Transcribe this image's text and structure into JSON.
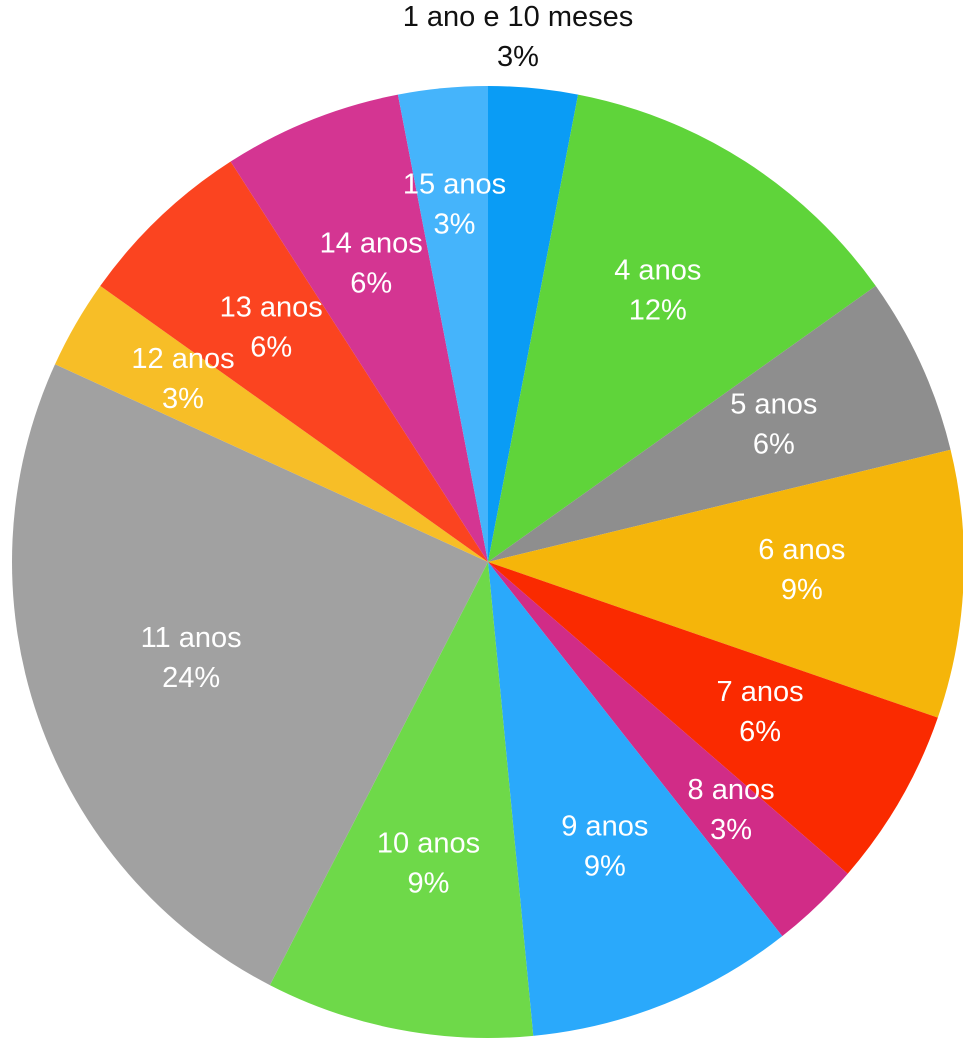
{
  "chart_data": {
    "type": "pie",
    "title": "",
    "start_angle_deg": 0,
    "direction": "clockwise",
    "slices": [
      {
        "label": "1 ano e 10 meses",
        "value": 3,
        "display": "3%",
        "color": "#0a9cf5",
        "label_outside": true
      },
      {
        "label": "4 anos",
        "value": 12,
        "display": "12%",
        "color": "#5fd43a",
        "label_outside": false
      },
      {
        "label": "5 anos",
        "value": 6,
        "display": "6%",
        "color": "#8e8e8e",
        "label_outside": false
      },
      {
        "label": "6 anos",
        "value": 9,
        "display": "9%",
        "color": "#f5b50a",
        "label_outside": false
      },
      {
        "label": "7 anos",
        "value": 6,
        "display": "6%",
        "color": "#fa2a00",
        "label_outside": false
      },
      {
        "label": "8 anos",
        "value": 3,
        "display": "3%",
        "color": "#d12c87",
        "label_outside": false
      },
      {
        "label": "9 anos",
        "value": 9,
        "display": "9%",
        "color": "#2aa9fb",
        "label_outside": false
      },
      {
        "label": "10 anos",
        "value": 9,
        "display": "9%",
        "color": "#6ed949",
        "label_outside": false
      },
      {
        "label": "11 anos",
        "value": 24,
        "display": "24%",
        "color": "#a1a1a1",
        "label_outside": false
      },
      {
        "label": "12 anos",
        "value": 3,
        "display": "3%",
        "color": "#f7be27",
        "label_outside": false
      },
      {
        "label": "13 anos",
        "value": 6,
        "display": "6%",
        "color": "#fb4420",
        "label_outside": false
      },
      {
        "label": "14 anos",
        "value": 6,
        "display": "6%",
        "color": "#d43592",
        "label_outside": false
      },
      {
        "label": "15 anos",
        "value": 3,
        "display": "3%",
        "color": "#45b4fb",
        "label_outside": false
      }
    ]
  }
}
